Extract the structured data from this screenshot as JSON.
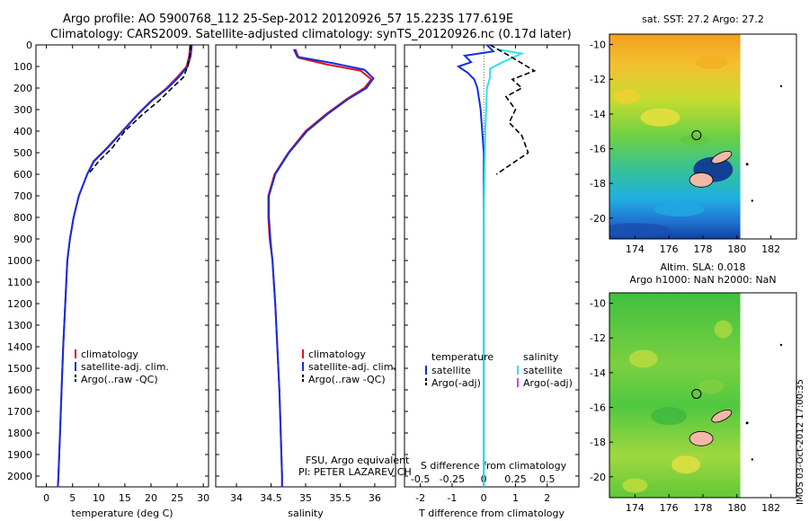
{
  "header": {
    "title_line1": "Argo profile: AO 5900768_112 25-Sep-2012 20120926_57 15.223S 177.619E",
    "title_line2": "Climatology: CARS2009. Satellite-adjusted climatology: synTS_20120926.nc (0.17d later)"
  },
  "colors": {
    "climatology": "#e0101a",
    "satellite": "#1030e0",
    "argo": "#000000",
    "salinity_satellite": "#30e0ee",
    "salinity_argo": "#e040e0"
  },
  "footer": {
    "credit_line1": "FSU, Argo equivalent",
    "credit_line2": "PI: PETER LAZAREVICH",
    "imos_stamp": "IMOS 03-Oct-2012 17:00:35"
  },
  "chart_data": [
    {
      "type": "line",
      "name": "temperature-profile",
      "xlabel": "temperature (deg C)",
      "xlim": [
        -2,
        31
      ],
      "ylim": [
        0,
        2050
      ],
      "y_reversed": true,
      "xticks": [
        0,
        5,
        10,
        15,
        20,
        25,
        30
      ],
      "yticks": [
        0,
        100,
        200,
        300,
        400,
        500,
        600,
        700,
        800,
        900,
        1000,
        1100,
        1200,
        1300,
        1400,
        1500,
        1600,
        1700,
        1800,
        1900,
        2000
      ],
      "legend": [
        "climatology",
        "satellite-adj. clim.",
        "Argo(..raw -QC)"
      ],
      "series": [
        {
          "name": "climatology",
          "color_key": "climatology",
          "dash": false,
          "points": [
            [
              27.5,
              0
            ],
            [
              27.3,
              50
            ],
            [
              26.8,
              100
            ],
            [
              25.0,
              150
            ],
            [
              23.0,
              200
            ],
            [
              20.0,
              260
            ],
            [
              17.5,
              320
            ],
            [
              14.5,
              400
            ],
            [
              11.5,
              480
            ],
            [
              9.0,
              540
            ],
            [
              7.8,
              600
            ],
            [
              6.2,
              700
            ],
            [
              5.2,
              800
            ],
            [
              4.5,
              900
            ],
            [
              4.0,
              1000
            ],
            [
              3.6,
              1200
            ],
            [
              3.2,
              1400
            ],
            [
              2.9,
              1600
            ],
            [
              2.6,
              1800
            ],
            [
              2.3,
              2000
            ],
            [
              2.2,
              2050
            ]
          ]
        },
        {
          "name": "satellite-adj. clim.",
          "color_key": "satellite",
          "dash": false,
          "points": [
            [
              27.8,
              0
            ],
            [
              27.6,
              50
            ],
            [
              27.0,
              100
            ],
            [
              25.3,
              150
            ],
            [
              23.2,
              200
            ],
            [
              20.1,
              260
            ],
            [
              17.6,
              320
            ],
            [
              14.6,
              400
            ],
            [
              11.6,
              480
            ],
            [
              9.1,
              540
            ],
            [
              7.8,
              600
            ],
            [
              6.2,
              700
            ],
            [
              5.2,
              800
            ],
            [
              4.5,
              900
            ],
            [
              4.0,
              1000
            ],
            [
              3.6,
              1200
            ],
            [
              3.2,
              1400
            ],
            [
              2.9,
              1600
            ],
            [
              2.6,
              1800
            ],
            [
              2.3,
              2000
            ],
            [
              2.2,
              2050
            ]
          ]
        },
        {
          "name": "Argo(..raw -QC)",
          "color_key": "argo",
          "dash": true,
          "points": [
            [
              27.6,
              0
            ],
            [
              27.4,
              50
            ],
            [
              27.0,
              100
            ],
            [
              26.2,
              150
            ],
            [
              24.0,
              200
            ],
            [
              21.5,
              260
            ],
            [
              18.5,
              320
            ],
            [
              15.0,
              400
            ],
            [
              12.5,
              480
            ],
            [
              10.0,
              540
            ],
            [
              8.0,
              600
            ]
          ]
        }
      ]
    },
    {
      "type": "line",
      "name": "salinity-profile",
      "xlabel": "salinity",
      "xlim": [
        33.7,
        36.3
      ],
      "ylim": [
        0,
        2050
      ],
      "y_reversed": true,
      "xticks": [
        34,
        34.5,
        35,
        35.5,
        36
      ],
      "legend": [
        "climatology",
        "satellite-adj. clim.",
        "Argo(..raw -QC)"
      ],
      "series": [
        {
          "name": "climatology",
          "color_key": "climatology",
          "dash": false,
          "points": [
            [
              34.85,
              20
            ],
            [
              34.9,
              60
            ],
            [
              35.3,
              90
            ],
            [
              35.8,
              120
            ],
            [
              35.95,
              160
            ],
            [
              35.85,
              200
            ],
            [
              35.6,
              250
            ],
            [
              35.3,
              320
            ],
            [
              35.0,
              400
            ],
            [
              34.75,
              500
            ],
            [
              34.55,
              600
            ],
            [
              34.46,
              700
            ],
            [
              34.46,
              800
            ],
            [
              34.48,
              900
            ],
            [
              34.52,
              1000
            ],
            [
              34.56,
              1200
            ],
            [
              34.59,
              1400
            ],
            [
              34.62,
              1600
            ],
            [
              34.64,
              1800
            ],
            [
              34.66,
              2000
            ],
            [
              34.66,
              2050
            ]
          ]
        },
        {
          "name": "satellite-adj. clim.",
          "color_key": "satellite",
          "dash": false,
          "points": [
            [
              34.83,
              20
            ],
            [
              34.88,
              55
            ],
            [
              35.4,
              85
            ],
            [
              35.85,
              115
            ],
            [
              35.98,
              155
            ],
            [
              35.88,
              200
            ],
            [
              35.62,
              250
            ],
            [
              35.32,
              320
            ],
            [
              35.02,
              400
            ],
            [
              34.76,
              500
            ],
            [
              34.56,
              600
            ],
            [
              34.47,
              700
            ],
            [
              34.47,
              800
            ],
            [
              34.49,
              900
            ],
            [
              34.52,
              1000
            ],
            [
              34.56,
              1200
            ],
            [
              34.59,
              1400
            ],
            [
              34.62,
              1600
            ],
            [
              34.64,
              1800
            ],
            [
              34.66,
              2000
            ],
            [
              34.66,
              2050
            ]
          ]
        }
      ]
    },
    {
      "type": "line",
      "name": "difference-profile",
      "xlabel": "T difference from climatology",
      "xlabel2": "S difference from climatology",
      "xlim": [
        -2.5,
        3
      ],
      "ylim": [
        0,
        2050
      ],
      "y_reversed": true,
      "xticks": [
        -2,
        -1,
        0,
        1,
        2
      ],
      "sticks": [
        -0.5,
        -0.25,
        0,
        0.25,
        0.5
      ],
      "sticks_labels": [
        "-0.5",
        "-0.25",
        "0",
        "0.25",
        "0.5"
      ],
      "legend_header_t": "temperature",
      "legend_header_s": "salinity",
      "legend_t": [
        "satellite",
        "Argo(-adj)"
      ],
      "legend_s": [
        "satellite",
        "Argo(-adj)"
      ],
      "series": [
        {
          "name": "temperature satellite",
          "color_key": "satellite",
          "dash": false,
          "points": [
            [
              0.1,
              0
            ],
            [
              0.3,
              30
            ],
            [
              -0.6,
              50
            ],
            [
              -0.4,
              80
            ],
            [
              -0.8,
              100
            ],
            [
              -0.5,
              130
            ],
            [
              -0.3,
              160
            ],
            [
              -0.2,
              200
            ],
            [
              -0.1,
              300
            ],
            [
              0,
              500
            ],
            [
              0,
              1000
            ],
            [
              0,
              1500
            ],
            [
              0,
              2050
            ]
          ]
        },
        {
          "name": "salinity satellite",
          "color_key": "salinity_satellite",
          "dash": false,
          "points": [
            [
              0.4,
              20
            ],
            [
              1.2,
              40
            ],
            [
              0.9,
              60
            ],
            [
              0.6,
              80
            ],
            [
              0.2,
              110
            ],
            [
              0.2,
              150
            ],
            [
              0.1,
              200
            ],
            [
              0.05,
              400
            ],
            [
              0,
              800
            ],
            [
              0,
              1200
            ],
            [
              0,
              2050
            ]
          ]
        },
        {
          "name": "temperature Argo",
          "color_key": "argo",
          "dash": true,
          "points": [
            [
              0.2,
              0
            ],
            [
              0.8,
              50
            ],
            [
              1.6,
              120
            ],
            [
              0.9,
              160
            ],
            [
              1.2,
              200
            ],
            [
              0.7,
              240
            ],
            [
              1.0,
              300
            ],
            [
              0.8,
              360
            ],
            [
              1.2,
              420
            ],
            [
              1.4,
              500
            ],
            [
              0.9,
              550
            ],
            [
              0.4,
              600
            ]
          ]
        }
      ]
    },
    {
      "type": "heatmap",
      "name": "sst-map",
      "title": "sat. SST: 27.2 Argo: 27.2",
      "xlim": [
        172.5,
        183.5
      ],
      "ylim": [
        -21.2,
        -9.4
      ],
      "xticks": [
        174,
        176,
        178,
        180,
        182
      ],
      "yticks": [
        -10,
        -12,
        -14,
        -16,
        -18,
        -20
      ]
    },
    {
      "type": "heatmap",
      "name": "sla-map",
      "title_line1": "Altim. SLA: 0.018",
      "title_line2": "Argo h1000: NaN h2000: NaN",
      "xlim": [
        172.5,
        183.5
      ],
      "ylim": [
        -21.2,
        -9.4
      ],
      "xticks": [
        174,
        176,
        178,
        180,
        182
      ],
      "yticks": [
        -10,
        -12,
        -14,
        -16,
        -18,
        -20
      ]
    }
  ]
}
